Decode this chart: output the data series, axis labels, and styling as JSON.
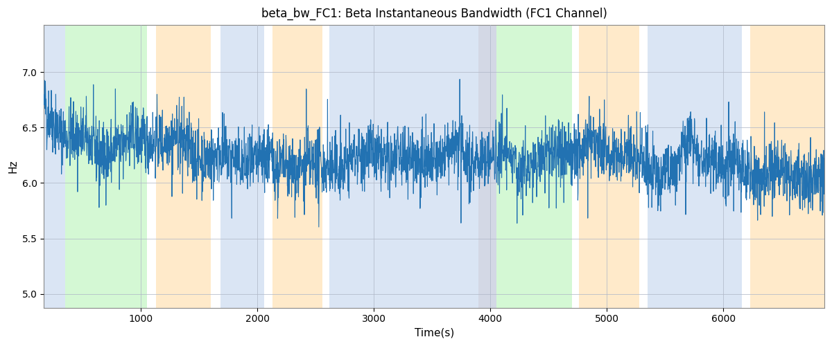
{
  "title": "beta_bw_FC1: Beta Instantaneous Bandwidth (FC1 Channel)",
  "xlabel": "Time(s)",
  "ylabel": "Hz",
  "xlim": [
    167,
    6867
  ],
  "ylim": [
    4.875,
    7.425
  ],
  "line_color": "#2272b2",
  "line_width": 0.8,
  "background_color": "#ffffff",
  "grid_color": "#b0b8c8",
  "seed": 42,
  "bands": [
    {
      "start": 167,
      "end": 350,
      "color": "#aec6e8",
      "alpha": 0.45
    },
    {
      "start": 350,
      "end": 1050,
      "color": "#90ee90",
      "alpha": 0.38
    },
    {
      "start": 1130,
      "end": 1600,
      "color": "#ffd9a0",
      "alpha": 0.55
    },
    {
      "start": 1680,
      "end": 2060,
      "color": "#aec6e8",
      "alpha": 0.45
    },
    {
      "start": 2130,
      "end": 2560,
      "color": "#ffd9a0",
      "alpha": 0.55
    },
    {
      "start": 2620,
      "end": 3900,
      "color": "#aec6e8",
      "alpha": 0.45
    },
    {
      "start": 3900,
      "end": 4050,
      "color": "#b0b8d0",
      "alpha": 0.55
    },
    {
      "start": 4050,
      "end": 4700,
      "color": "#90ee90",
      "alpha": 0.38
    },
    {
      "start": 4760,
      "end": 5280,
      "color": "#ffd9a0",
      "alpha": 0.55
    },
    {
      "start": 5350,
      "end": 6160,
      "color": "#aec6e8",
      "alpha": 0.45
    },
    {
      "start": 6230,
      "end": 6867,
      "color": "#ffd9a0",
      "alpha": 0.55
    }
  ],
  "n_points": 3300,
  "t_start": 167,
  "t_end": 6867,
  "mean": 6.25,
  "std": 0.14,
  "spike_prob": 0.035,
  "spike_mag": 0.45
}
